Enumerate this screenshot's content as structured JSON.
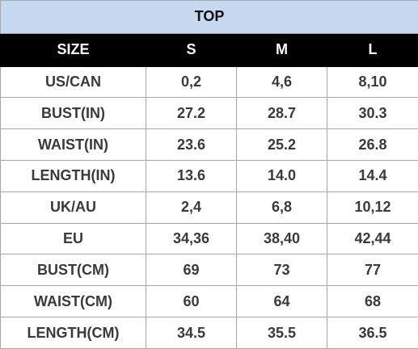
{
  "table": {
    "title": "TOP",
    "header": [
      "SIZE",
      "S",
      "M",
      "L"
    ],
    "rows": [
      [
        "US/CAN",
        "0,2",
        "4,6",
        "8,10"
      ],
      [
        "BUST(IN)",
        "27.2",
        "28.7",
        "30.3"
      ],
      [
        "WAIST(IN)",
        "23.6",
        "25.2",
        "26.8"
      ],
      [
        "LENGTH(IN)",
        "13.6",
        "14.0",
        "14.4"
      ],
      [
        "UK/AU",
        "2,4",
        "6,8",
        "10,12"
      ],
      [
        "EU",
        "34,36",
        "38,40",
        "42,44"
      ],
      [
        "BUST(CM)",
        "69",
        "73",
        "77"
      ],
      [
        "WAIST(CM)",
        "60",
        "64",
        "68"
      ],
      [
        "LENGTH(CM)",
        "34.5",
        "35.5",
        "36.5"
      ]
    ]
  }
}
